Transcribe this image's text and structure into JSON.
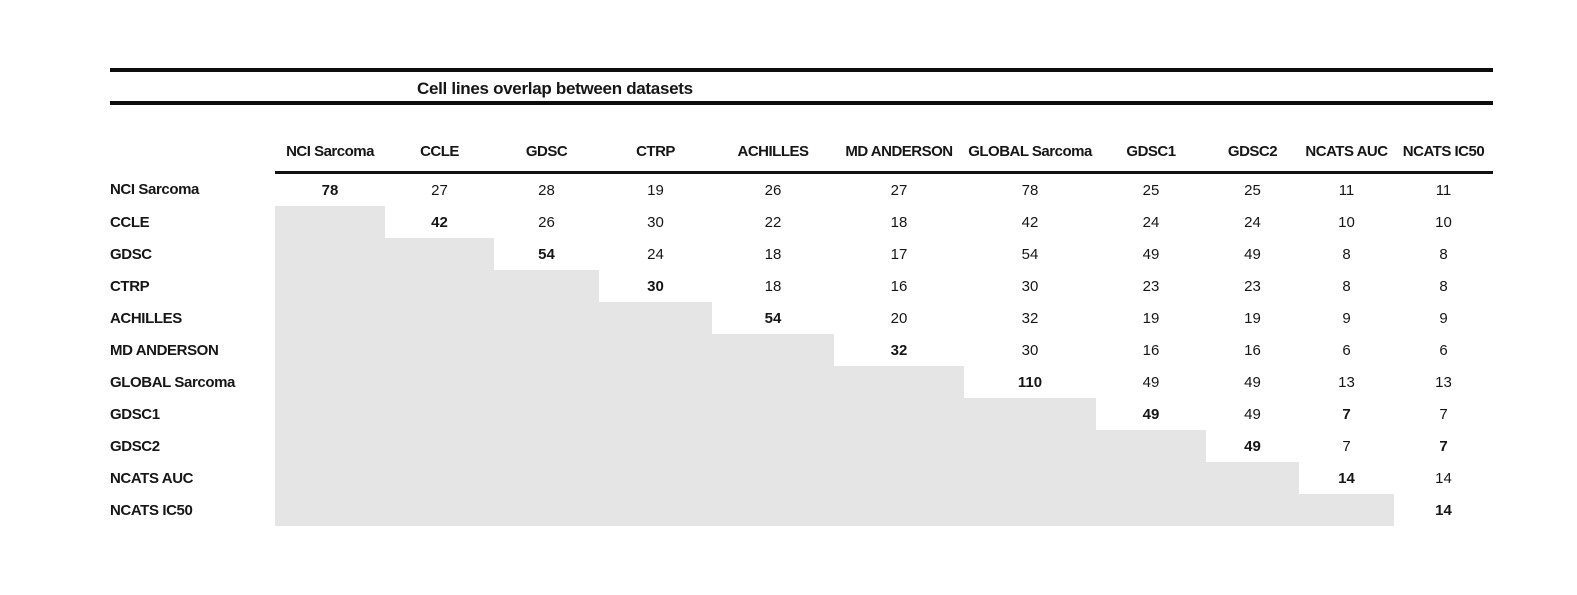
{
  "figure": {
    "title": "Cell lines overlap between datasets"
  },
  "chart_data": {
    "type": "table",
    "title": "Cell lines overlap between datasets",
    "columns": [
      "NCI Sarcoma",
      "CCLE",
      "GDSC",
      "CTRP",
      "ACHILLES",
      "MD ANDERSON",
      "GLOBAL Sarcoma",
      "GDSC1",
      "GDSC2",
      "NCATS AUC",
      "NCATS IC50"
    ],
    "rows": [
      {
        "label": "NCI Sarcoma",
        "values": [
          78,
          27,
          28,
          19,
          26,
          27,
          78,
          25,
          25,
          11,
          11
        ]
      },
      {
        "label": "CCLE",
        "values": [
          null,
          42,
          26,
          30,
          22,
          18,
          42,
          24,
          24,
          10,
          10
        ]
      },
      {
        "label": "GDSC",
        "values": [
          null,
          null,
          54,
          24,
          18,
          17,
          54,
          49,
          49,
          8,
          8
        ]
      },
      {
        "label": "CTRP",
        "values": [
          null,
          null,
          null,
          30,
          18,
          16,
          30,
          23,
          23,
          8,
          8
        ]
      },
      {
        "label": "ACHILLES",
        "values": [
          null,
          null,
          null,
          null,
          54,
          20,
          32,
          19,
          19,
          9,
          9
        ]
      },
      {
        "label": "MD ANDERSON",
        "values": [
          null,
          null,
          null,
          null,
          null,
          32,
          30,
          16,
          16,
          6,
          6
        ]
      },
      {
        "label": "GLOBAL Sarcoma",
        "values": [
          null,
          null,
          null,
          null,
          null,
          null,
          110,
          49,
          49,
          13,
          13
        ]
      },
      {
        "label": "GDSC1",
        "values": [
          null,
          null,
          null,
          null,
          null,
          null,
          null,
          49,
          49,
          7,
          7
        ]
      },
      {
        "label": "GDSC2",
        "values": [
          null,
          null,
          null,
          null,
          null,
          null,
          null,
          null,
          49,
          7,
          7
        ]
      },
      {
        "label": "NCATS AUC",
        "values": [
          null,
          null,
          null,
          null,
          null,
          null,
          null,
          null,
          null,
          14,
          14
        ]
      },
      {
        "label": "NCATS IC50",
        "values": [
          null,
          null,
          null,
          null,
          null,
          null,
          null,
          null,
          null,
          null,
          14
        ]
      }
    ],
    "bold_cells": [
      [
        0,
        0
      ],
      [
        1,
        1
      ],
      [
        2,
        2
      ],
      [
        3,
        3
      ],
      [
        4,
        4
      ],
      [
        5,
        5
      ],
      [
        6,
        6
      ],
      [
        7,
        7
      ],
      [
        7,
        9
      ],
      [
        8,
        8
      ],
      [
        8,
        10
      ],
      [
        9,
        9
      ],
      [
        10,
        10
      ]
    ],
    "shaded_region": "lower_triangle",
    "shade_color": "#e6e5e5",
    "legend_position": "none",
    "grid": false
  }
}
